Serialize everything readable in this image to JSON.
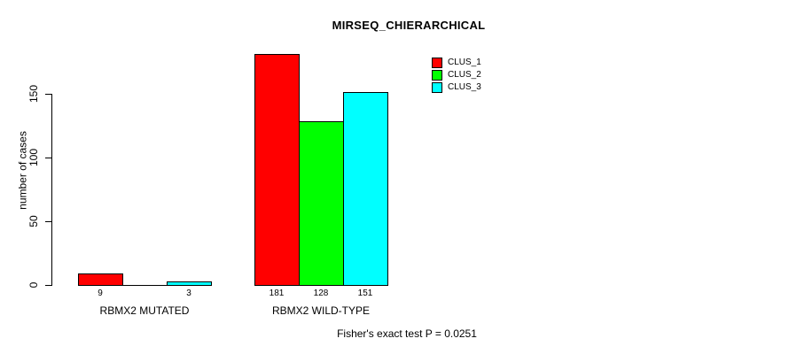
{
  "chart_data": {
    "type": "bar",
    "title": "MIRSEQ_CHIERARCHICAL",
    "xlabel": "",
    "ylabel": "number of cases",
    "categories": [
      "RBMX2 MUTATED",
      "RBMX2 WILD-TYPE"
    ],
    "series": [
      {
        "name": "CLUS_1",
        "color": "#ff0000",
        "values": [
          9,
          181
        ]
      },
      {
        "name": "CLUS_2",
        "color": "#00ff00",
        "values": [
          0,
          128
        ]
      },
      {
        "name": "CLUS_3",
        "color": "#00ffff",
        "values": [
          3,
          151
        ]
      }
    ],
    "bar_value_labels": [
      [
        "9",
        "",
        "3"
      ],
      [
        "181",
        "128",
        "151"
      ]
    ],
    "yticks": [
      0,
      50,
      100,
      150
    ],
    "ylim": [
      0,
      187
    ],
    "grid": false,
    "legend_position": "top-right",
    "bar_border_color": "#000000",
    "annotation": "Fisher's exact test P = 0.0251"
  }
}
